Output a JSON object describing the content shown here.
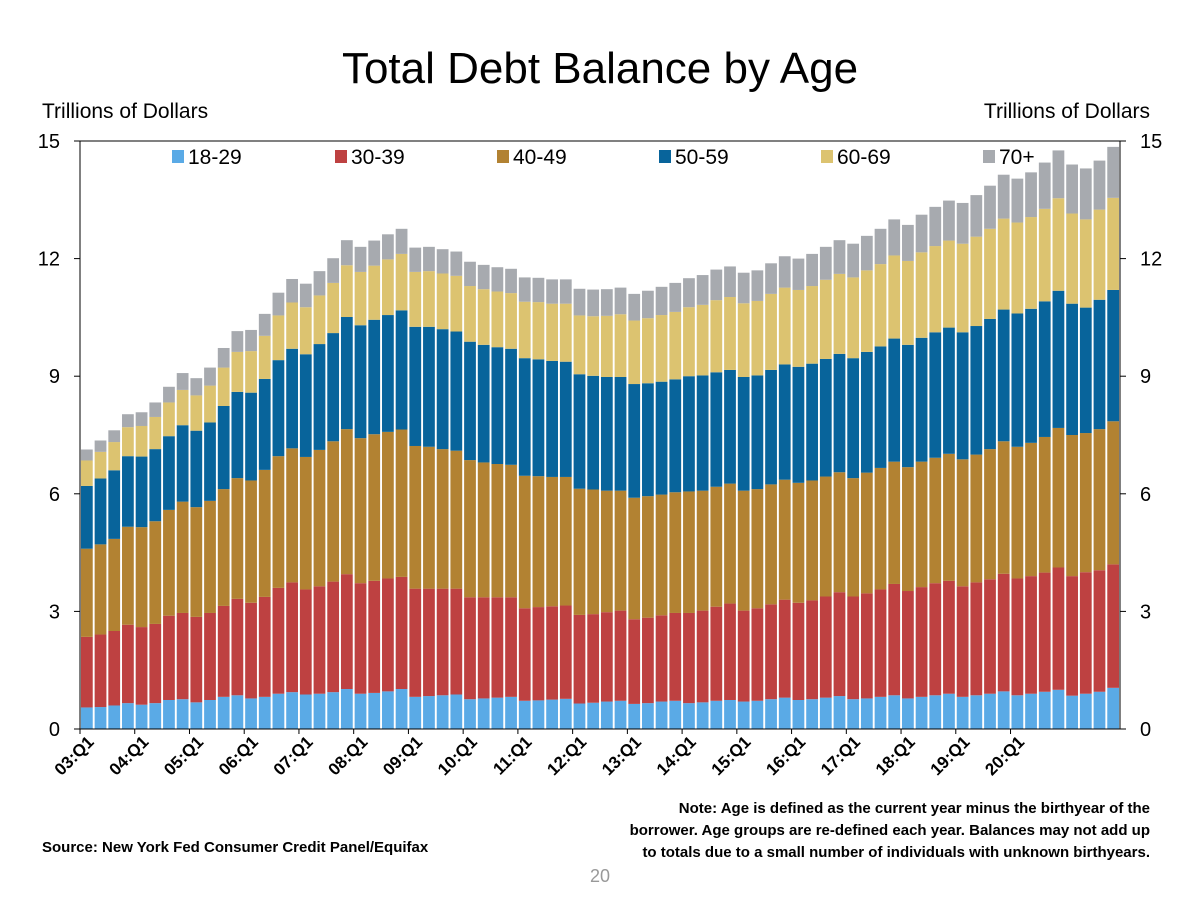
{
  "chart_data": {
    "type": "bar",
    "stacked": true,
    "title": "Total Debt Balance by Age",
    "ylabel_left": "Trillions of Dollars",
    "ylabel_right": "Trillions of Dollars",
    "ylim": [
      0,
      15
    ],
    "yticks": [
      0,
      3,
      6,
      9,
      12,
      15
    ],
    "x_tick_labels": [
      "03:Q1",
      "04:Q1",
      "05:Q1",
      "06:Q1",
      "07:Q1",
      "08:Q1",
      "09:Q1",
      "10:Q1",
      "11:Q1",
      "12:Q1",
      "13:Q1",
      "14:Q1",
      "15:Q1",
      "16:Q1",
      "17:Q1",
      "18:Q1",
      "19:Q1",
      "20:Q1"
    ],
    "legend_position": "top",
    "series": [
      {
        "name": "18-29",
        "color": "#5aaae6",
        "values": [
          0.55,
          0.56,
          0.6,
          0.66,
          0.62,
          0.66,
          0.74,
          0.76,
          0.68,
          0.74,
          0.82,
          0.86,
          0.78,
          0.82,
          0.9,
          0.94,
          0.88,
          0.9,
          0.94,
          1.02,
          0.9,
          0.92,
          0.96,
          1.02,
          0.82,
          0.84,
          0.86,
          0.88,
          0.76,
          0.78,
          0.8,
          0.82,
          0.72,
          0.73,
          0.75,
          0.77,
          0.65,
          0.67,
          0.7,
          0.72,
          0.64,
          0.66,
          0.7,
          0.72,
          0.66,
          0.68,
          0.72,
          0.74,
          0.7,
          0.72,
          0.76,
          0.8,
          0.74,
          0.76,
          0.8,
          0.84,
          0.76,
          0.78,
          0.82,
          0.86,
          0.78,
          0.82,
          0.86,
          0.9,
          0.82,
          0.86,
          0.9,
          0.96,
          0.86,
          0.9,
          0.95,
          1.0,
          0.85,
          0.9,
          0.95,
          1.05
        ]
      },
      {
        "name": "30-39",
        "color": "#be4141",
        "values": [
          1.8,
          1.85,
          1.9,
          2.0,
          1.98,
          2.02,
          2.15,
          2.2,
          2.18,
          2.22,
          2.32,
          2.46,
          2.44,
          2.55,
          2.7,
          2.8,
          2.68,
          2.74,
          2.82,
          2.93,
          2.82,
          2.86,
          2.88,
          2.86,
          2.76,
          2.74,
          2.72,
          2.7,
          2.6,
          2.58,
          2.56,
          2.54,
          2.36,
          2.38,
          2.38,
          2.38,
          2.26,
          2.26,
          2.28,
          2.3,
          2.16,
          2.18,
          2.2,
          2.24,
          2.3,
          2.34,
          2.4,
          2.46,
          2.32,
          2.36,
          2.42,
          2.5,
          2.48,
          2.52,
          2.58,
          2.65,
          2.62,
          2.68,
          2.74,
          2.84,
          2.74,
          2.8,
          2.86,
          2.88,
          2.82,
          2.88,
          2.92,
          3.0,
          2.98,
          3.0,
          3.04,
          3.12,
          3.05,
          3.1,
          3.1,
          3.15
        ]
      },
      {
        "name": "40-49",
        "color": "#b28232",
        "values": [
          2.25,
          2.3,
          2.35,
          2.5,
          2.55,
          2.62,
          2.7,
          2.84,
          2.8,
          2.86,
          2.98,
          3.08,
          3.12,
          3.24,
          3.36,
          3.42,
          3.38,
          3.48,
          3.58,
          3.7,
          3.7,
          3.74,
          3.74,
          3.76,
          3.64,
          3.62,
          3.56,
          3.52,
          3.5,
          3.44,
          3.4,
          3.38,
          3.38,
          3.34,
          3.3,
          3.28,
          3.22,
          3.18,
          3.1,
          3.06,
          3.1,
          3.1,
          3.08,
          3.08,
          3.1,
          3.06,
          3.06,
          3.06,
          3.06,
          3.04,
          3.06,
          3.06,
          3.06,
          3.06,
          3.06,
          3.06,
          3.02,
          3.08,
          3.1,
          3.12,
          3.16,
          3.2,
          3.2,
          3.24,
          3.24,
          3.26,
          3.32,
          3.38,
          3.36,
          3.4,
          3.46,
          3.56,
          3.6,
          3.55,
          3.6,
          3.65
        ]
      },
      {
        "name": "50-59",
        "color": "#08649b",
        "values": [
          1.6,
          1.68,
          1.75,
          1.8,
          1.8,
          1.84,
          1.88,
          1.95,
          1.95,
          2.0,
          2.12,
          2.2,
          2.24,
          2.32,
          2.45,
          2.54,
          2.62,
          2.7,
          2.76,
          2.86,
          2.88,
          2.92,
          2.98,
          3.04,
          3.04,
          3.06,
          3.06,
          3.04,
          3.02,
          3.0,
          2.98,
          2.96,
          3.0,
          2.98,
          2.96,
          2.94,
          2.92,
          2.9,
          2.9,
          2.9,
          2.9,
          2.88,
          2.88,
          2.88,
          2.94,
          2.94,
          2.92,
          2.9,
          2.9,
          2.9,
          2.92,
          2.94,
          2.96,
          2.98,
          3.0,
          3.02,
          3.06,
          3.08,
          3.1,
          3.14,
          3.12,
          3.16,
          3.2,
          3.22,
          3.24,
          3.28,
          3.32,
          3.36,
          3.4,
          3.42,
          3.46,
          3.5,
          3.35,
          3.2,
          3.3,
          3.35
        ]
      },
      {
        "name": "60-69",
        "color": "#dcc370",
        "values": [
          0.65,
          0.68,
          0.72,
          0.74,
          0.78,
          0.82,
          0.86,
          0.9,
          0.9,
          0.94,
          0.98,
          1.02,
          1.06,
          1.1,
          1.14,
          1.18,
          1.2,
          1.24,
          1.28,
          1.32,
          1.36,
          1.38,
          1.42,
          1.44,
          1.4,
          1.42,
          1.42,
          1.42,
          1.42,
          1.42,
          1.42,
          1.42,
          1.44,
          1.46,
          1.46,
          1.48,
          1.5,
          1.52,
          1.56,
          1.6,
          1.62,
          1.66,
          1.7,
          1.72,
          1.76,
          1.8,
          1.84,
          1.86,
          1.88,
          1.9,
          1.94,
          1.96,
          1.96,
          1.98,
          2.02,
          2.04,
          2.06,
          2.08,
          2.1,
          2.12,
          2.14,
          2.18,
          2.2,
          2.22,
          2.26,
          2.28,
          2.3,
          2.32,
          2.32,
          2.34,
          2.36,
          2.36,
          2.3,
          2.25,
          2.3,
          2.35
        ]
      },
      {
        "name": "70+",
        "color": "#a7aaaf",
        "values": [
          0.28,
          0.29,
          0.3,
          0.33,
          0.35,
          0.37,
          0.4,
          0.43,
          0.44,
          0.46,
          0.5,
          0.53,
          0.54,
          0.56,
          0.58,
          0.6,
          0.6,
          0.62,
          0.63,
          0.64,
          0.64,
          0.64,
          0.64,
          0.64,
          0.62,
          0.62,
          0.62,
          0.62,
          0.62,
          0.62,
          0.62,
          0.62,
          0.62,
          0.62,
          0.62,
          0.62,
          0.68,
          0.68,
          0.68,
          0.68,
          0.68,
          0.7,
          0.72,
          0.74,
          0.74,
          0.76,
          0.78,
          0.78,
          0.78,
          0.78,
          0.78,
          0.8,
          0.8,
          0.82,
          0.84,
          0.86,
          0.86,
          0.88,
          0.9,
          0.92,
          0.92,
          0.96,
          1.0,
          1.02,
          1.04,
          1.06,
          1.1,
          1.12,
          1.12,
          1.14,
          1.18,
          1.22,
          1.25,
          1.3,
          1.25,
          1.3
        ]
      }
    ]
  },
  "units_left": "Trillions of Dollars",
  "units_right": "Trillions of Dollars",
  "source": "Source: New York Fed Consumer Credit Panel/Equifax",
  "note_lines": [
    "Note: Age is defined as the current year minus the birthyear of the",
    "borrower. Age groups are re-defined each year. Balances may not add up",
    "to totals due to a small number of individuals with unknown birthyears."
  ],
  "page_number": "20"
}
